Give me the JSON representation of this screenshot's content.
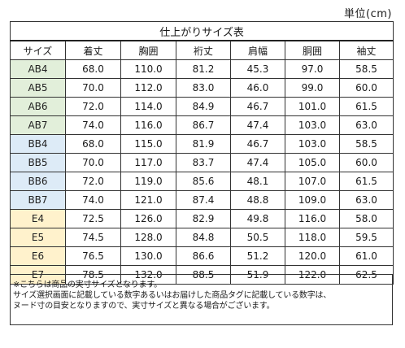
{
  "unit_label": "単位(cm)",
  "table": {
    "title": "仕上がりサイズ表",
    "headers": [
      "サイズ",
      "着丈",
      "胸囲",
      "裄丈",
      "肩幅",
      "胴囲",
      "袖丈"
    ],
    "rows": [
      {
        "group": "AB",
        "size": "AB4",
        "values": [
          "68.0",
          "110.0",
          "81.2",
          "45.3",
          "97.0",
          "58.5"
        ]
      },
      {
        "group": "AB",
        "size": "AB5",
        "values": [
          "70.0",
          "112.0",
          "83.0",
          "46.0",
          "99.0",
          "60.0"
        ]
      },
      {
        "group": "AB",
        "size": "AB6",
        "values": [
          "72.0",
          "114.0",
          "84.9",
          "46.7",
          "101.0",
          "61.5"
        ]
      },
      {
        "group": "AB",
        "size": "AB7",
        "values": [
          "74.0",
          "116.0",
          "86.7",
          "47.4",
          "103.0",
          "63.0"
        ]
      },
      {
        "group": "BB",
        "size": "BB4",
        "values": [
          "68.0",
          "115.0",
          "81.9",
          "46.7",
          "103.0",
          "58.5"
        ]
      },
      {
        "group": "BB",
        "size": "BB5",
        "values": [
          "70.0",
          "117.0",
          "83.7",
          "47.4",
          "105.0",
          "60.0"
        ]
      },
      {
        "group": "BB",
        "size": "BB6",
        "values": [
          "72.0",
          "119.0",
          "85.6",
          "48.1",
          "107.0",
          "61.5"
        ]
      },
      {
        "group": "BB",
        "size": "BB7",
        "values": [
          "74.0",
          "121.0",
          "87.4",
          "48.8",
          "109.0",
          "63.0"
        ]
      },
      {
        "group": "E",
        "size": "E4",
        "values": [
          "72.5",
          "126.0",
          "82.9",
          "49.8",
          "116.0",
          "58.0"
        ]
      },
      {
        "group": "E",
        "size": "E5",
        "values": [
          "74.5",
          "128.0",
          "84.8",
          "50.5",
          "118.0",
          "59.5"
        ]
      },
      {
        "group": "E",
        "size": "E6",
        "values": [
          "76.5",
          "130.0",
          "86.6",
          "51.2",
          "120.0",
          "61.0"
        ]
      },
      {
        "group": "E",
        "size": "E7",
        "values": [
          "78.5",
          "132.0",
          "88.5",
          "51.9",
          "122.0",
          "62.5"
        ]
      }
    ]
  },
  "notes": [
    "※こちらは商品の実寸サイズとなります。",
    "サイズ選択画面に記載している数字あるいはお届けした商品タグに記載している数字は、",
    "ヌード寸の目安となりますので、実寸サイズと異なる場合がございます。"
  ],
  "colors": {
    "AB": "#e2efda",
    "BB": "#ddebf7",
    "E": "#fff2cc",
    "border": "#333333"
  }
}
